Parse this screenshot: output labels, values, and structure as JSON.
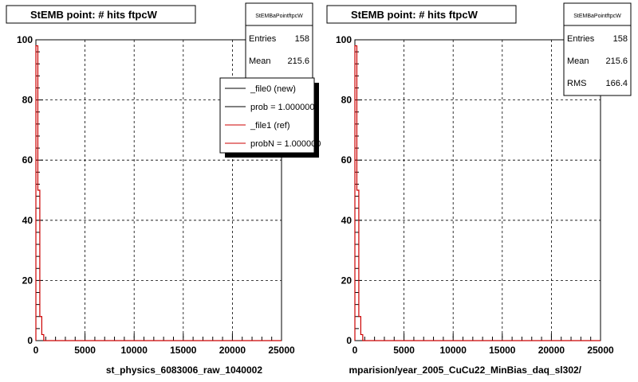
{
  "chart_data": [
    {
      "type": "histogram",
      "title": "StEMB point: # hits ftpcW",
      "xlabel": "st_physics_6083006_raw_1040002",
      "xlim": [
        0,
        25000
      ],
      "ylim": [
        0,
        100
      ],
      "x_ticks": [
        "0",
        "5000",
        "10000",
        "15000",
        "20000",
        "25000"
      ],
      "y_ticks": [
        "0",
        "20",
        "40",
        "60",
        "80",
        "100"
      ],
      "grid": true,
      "stats": {
        "name": "StEMBaPointftpcW",
        "rows": [
          {
            "label": "Entries",
            "value": "158"
          },
          {
            "label": "Mean",
            "value": "215.6"
          }
        ]
      },
      "legend": {
        "placement": "top-right",
        "entries": [
          {
            "label": "_file0 (new)",
            "color": "#000000"
          },
          {
            "label": "prob = 1.000000",
            "color": "#000000"
          },
          {
            "label": "_file1 (ref)",
            "color": "#cc0000"
          },
          {
            "label": "probN = 1.000000",
            "color": "#cc0000"
          }
        ]
      },
      "series": [
        {
          "color": "#cc0000",
          "bin_width": 200,
          "values": [
            98,
            50,
            8,
            2,
            0
          ]
        }
      ]
    },
    {
      "type": "histogram",
      "title": "StEMB point: # hits ftpcW",
      "xlabel": "mparision/year_2005_CuCu22_MinBias_daq_sl302/",
      "xlim": [
        0,
        25000
      ],
      "ylim": [
        0,
        100
      ],
      "x_ticks": [
        "0",
        "5000",
        "10000",
        "15000",
        "20000",
        "25000"
      ],
      "y_ticks": [
        "0",
        "20",
        "40",
        "60",
        "80",
        "100"
      ],
      "grid": true,
      "stats": {
        "name": "StEMBaPointftpcW",
        "rows": [
          {
            "label": "Entries",
            "value": "158"
          },
          {
            "label": "Mean",
            "value": "215.6"
          },
          {
            "label": "RMS",
            "value": "166.4"
          }
        ]
      },
      "series": [
        {
          "color": "#cc0000",
          "bin_width": 200,
          "values": [
            98,
            50,
            8,
            2,
            0
          ]
        }
      ]
    }
  ]
}
